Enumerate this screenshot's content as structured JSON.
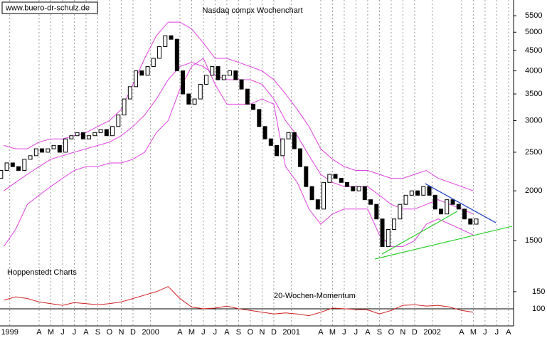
{
  "chart_data": [
    {
      "type": "candlestick",
      "title": "Nasdaq compx Wochenchart",
      "source": "www.buero-dr-schulz.de",
      "annotation": "Hoppenstedt Charts",
      "log_scale": true,
      "ylim": [
        1300,
        5900
      ],
      "yticks": [
        1500,
        2000,
        2500,
        3000,
        3500,
        4000,
        4500,
        5000,
        5500
      ],
      "xlim": [
        0.17,
        43.93
      ],
      "xticks": [
        {
          "value": 1,
          "label": "1999"
        },
        {
          "value": 3.5,
          "label": "A"
        },
        {
          "value": 4.5,
          "label": "M"
        },
        {
          "value": 5.5,
          "label": "J"
        },
        {
          "value": 6.5,
          "label": "J"
        },
        {
          "value": 7.5,
          "label": "A"
        },
        {
          "value": 8.5,
          "label": "S"
        },
        {
          "value": 9.5,
          "label": "O"
        },
        {
          "value": 10.5,
          "label": "N"
        },
        {
          "value": 11.5,
          "label": "D"
        },
        {
          "value": 13,
          "label": "2000"
        },
        {
          "value": 15.5,
          "label": "A"
        },
        {
          "value": 16.5,
          "label": "M"
        },
        {
          "value": 17.5,
          "label": "J"
        },
        {
          "value": 18.5,
          "label": "J"
        },
        {
          "value": 19.5,
          "label": "A"
        },
        {
          "value": 20.5,
          "label": "S"
        },
        {
          "value": 21.5,
          "label": "O"
        },
        {
          "value": 22.5,
          "label": "N"
        },
        {
          "value": 23.5,
          "label": "D"
        },
        {
          "value": 25,
          "label": "2001"
        },
        {
          "value": 27.5,
          "label": "A"
        },
        {
          "value": 28.5,
          "label": "M"
        },
        {
          "value": 29.5,
          "label": "J"
        },
        {
          "value": 30.5,
          "label": "J"
        },
        {
          "value": 31.5,
          "label": "A"
        },
        {
          "value": 32.5,
          "label": "S"
        },
        {
          "value": 33.5,
          "label": "O"
        },
        {
          "value": 34.5,
          "label": "N"
        },
        {
          "value": 35.5,
          "label": "D"
        },
        {
          "value": 37,
          "label": "2002"
        },
        {
          "value": 39.5,
          "label": "A"
        },
        {
          "value": 40.5,
          "label": "M"
        },
        {
          "value": 41.5,
          "label": "J"
        },
        {
          "value": 42.5,
          "label": "J"
        },
        {
          "value": 43.5,
          "label": "A"
        }
      ],
      "x": [
        0.25,
        0.75,
        1.25,
        1.75,
        2.25,
        2.75,
        3.25,
        3.75,
        4.25,
        4.75,
        5.25,
        5.75,
        6.25,
        6.75,
        7.25,
        7.75,
        8.25,
        8.75,
        9.25,
        9.75,
        10.25,
        10.75,
        11.25,
        11.75,
        12.25,
        12.75,
        13.25,
        13.75,
        14.25,
        14.75,
        15.25,
        15.75,
        16.25,
        16.75,
        17.25,
        17.75,
        18.25,
        18.75,
        19.25,
        19.75,
        20.25,
        20.75,
        21.25,
        21.75,
        22.25,
        22.75,
        23.25,
        23.75,
        24.25,
        24.75,
        25.25,
        25.75,
        26.25,
        26.75,
        27.25,
        27.75,
        28.25,
        28.75,
        29.25,
        29.75,
        30.25,
        30.75,
        31.25,
        31.75,
        32.25,
        32.75,
        33.25,
        33.75,
        34.25,
        34.75,
        35.25,
        35.75,
        36.25,
        36.75,
        37.25,
        37.75,
        38.25,
        38.75,
        39.25,
        39.75,
        40.25,
        40.75
      ],
      "open": [
        2150,
        2250,
        2350,
        2300,
        2250,
        2400,
        2450,
        2550,
        2500,
        2550,
        2600,
        2500,
        2700,
        2750,
        2800,
        2700,
        2750,
        2800,
        2850,
        2750,
        2900,
        3100,
        3400,
        3650,
        4000,
        3900,
        4100,
        4300,
        4600,
        4900,
        4800,
        4000,
        3500,
        3300,
        3400,
        3700,
        3900,
        4100,
        3800,
        3900,
        4000,
        3800,
        3600,
        3300,
        3200,
        2900,
        2700,
        2600,
        2450,
        2700,
        2800,
        2550,
        2300,
        2050,
        1900,
        1800,
        2100,
        2200,
        2150,
        2100,
        2050,
        2000,
        2050,
        1900,
        1850,
        1700,
        1450,
        1600,
        1700,
        1850,
        1950,
        2000,
        1950,
        2050,
        1950,
        1800,
        1750,
        1900,
        1850,
        1800,
        1700,
        1650
      ],
      "close": [
        2250,
        2350,
        2300,
        2250,
        2400,
        2450,
        2550,
        2500,
        2550,
        2600,
        2500,
        2700,
        2750,
        2800,
        2700,
        2750,
        2800,
        2850,
        2750,
        2900,
        3100,
        3400,
        3650,
        4000,
        3900,
        4100,
        4300,
        4600,
        4900,
        4800,
        4000,
        3500,
        3300,
        3400,
        3700,
        3900,
        4100,
        3800,
        3900,
        4000,
        3800,
        3600,
        3300,
        3200,
        2900,
        2700,
        2600,
        2450,
        2700,
        2800,
        2550,
        2300,
        2050,
        1900,
        1800,
        2100,
        2200,
        2150,
        2100,
        2050,
        2000,
        2050,
        1900,
        1850,
        1700,
        1450,
        1600,
        1700,
        1850,
        1950,
        2000,
        1950,
        2050,
        1950,
        1800,
        1750,
        1900,
        1850,
        1800,
        1700,
        1650,
        1700
      ],
      "bands": {
        "x": [
          0.5,
          1.5,
          2.5,
          3.5,
          4.5,
          5.5,
          6.5,
          7.5,
          8.5,
          9.5,
          10.5,
          11.5,
          12.5,
          13.5,
          14.5,
          15.5,
          16.5,
          17.5,
          18.5,
          19.5,
          20.5,
          21.5,
          22.5,
          23.5,
          24.5,
          25.5,
          26.5,
          27.5,
          28.5,
          29.5,
          30.5,
          31.5,
          32.5,
          33.5,
          34.5,
          35.5,
          36.5,
          37.5,
          38.5,
          39.5,
          40.5
        ],
        "series": [
          {
            "color": "#e040e0",
            "values": [
              2600,
              2550,
              2550,
              2650,
              2700,
              2700,
              2750,
              2800,
              2900,
              3000,
              3200,
              3700,
              4300,
              4900,
              5300,
              5300,
              5100,
              4700,
              4300,
              4300,
              4200,
              4100,
              4000,
              3800,
              3500,
              3200,
              2900,
              2550,
              2400,
              2300,
              2250,
              2250,
              2200,
              2150,
              2150,
              2200,
              2250,
              2150,
              2100,
              2050,
              2000
            ]
          },
          {
            "color": "#e040e0",
            "values": [
              2000,
              2100,
              2200,
              2300,
              2400,
              2450,
              2500,
              2550,
              2600,
              2650,
              2750,
              2900,
              3100,
              3400,
              3800,
              4100,
              4200,
              4100,
              3900,
              3800,
              3800,
              3800,
              3700,
              3400,
              3000,
              2750,
              2450,
              2200,
              2100,
              2050,
              2050,
              2050,
              1950,
              1850,
              1800,
              1800,
              1850,
              1900,
              1850,
              1800,
              1750
            ]
          },
          {
            "color": "#e040e0",
            "values": [
              1450,
              1600,
              1850,
              1950,
              2050,
              2150,
              2250,
              2300,
              2300,
              2350,
              2350,
              2400,
              2500,
              2800,
              3000,
              3600,
              4100,
              4300,
              3700,
              3300,
              3300,
              3300,
              3400,
              3300,
              2300,
              2100,
              1800,
              1650,
              1750,
              1800,
              1800,
              1800,
              1550,
              1450,
              1450,
              1500,
              1650,
              1700,
              1650,
              1600,
              1550
            ]
          }
        ]
      },
      "trendlines": [
        {
          "color": "#2040c0",
          "x": [
            36.4,
            42.41
          ],
          "values": [
            2085,
            1664
          ]
        },
        {
          "color": "#30d030",
          "x": [
            32.11,
            43.81
          ],
          "values": [
            1349,
            1630
          ]
        },
        {
          "color": "#30d030",
          "x": [
            32.72,
            39.14
          ],
          "values": [
            1388,
            1777
          ]
        }
      ]
    },
    {
      "type": "line",
      "title": "20-Wochen-Momentum",
      "color": "#d02020",
      "ylim": [
        50,
        210
      ],
      "yticks": [
        100,
        150
      ],
      "xlim": [
        0.17,
        43.93
      ],
      "x": [
        0.5,
        1.5,
        2.5,
        3.5,
        4.5,
        5.5,
        6.5,
        7.5,
        8.5,
        9.5,
        10.5,
        11.5,
        12.5,
        13.5,
        14.5,
        15.5,
        16.5,
        17.5,
        18.5,
        19.5,
        20.5,
        21.5,
        22.5,
        23.5,
        24.5,
        25.5,
        26.5,
        27.5,
        28.5,
        29.5,
        30.5,
        31.5,
        32.5,
        33.5,
        34.5,
        35.5,
        36.5,
        37.5,
        38.5,
        39.5,
        40.5
      ],
      "values": [
        125,
        135,
        130,
        120,
        115,
        110,
        118,
        115,
        112,
        115,
        120,
        130,
        140,
        150,
        165,
        130,
        105,
        100,
        102,
        108,
        100,
        95,
        90,
        85,
        88,
        85,
        80,
        90,
        102,
        100,
        98,
        97,
        85,
        95,
        110,
        112,
        108,
        110,
        105,
        95,
        90
      ]
    }
  ]
}
